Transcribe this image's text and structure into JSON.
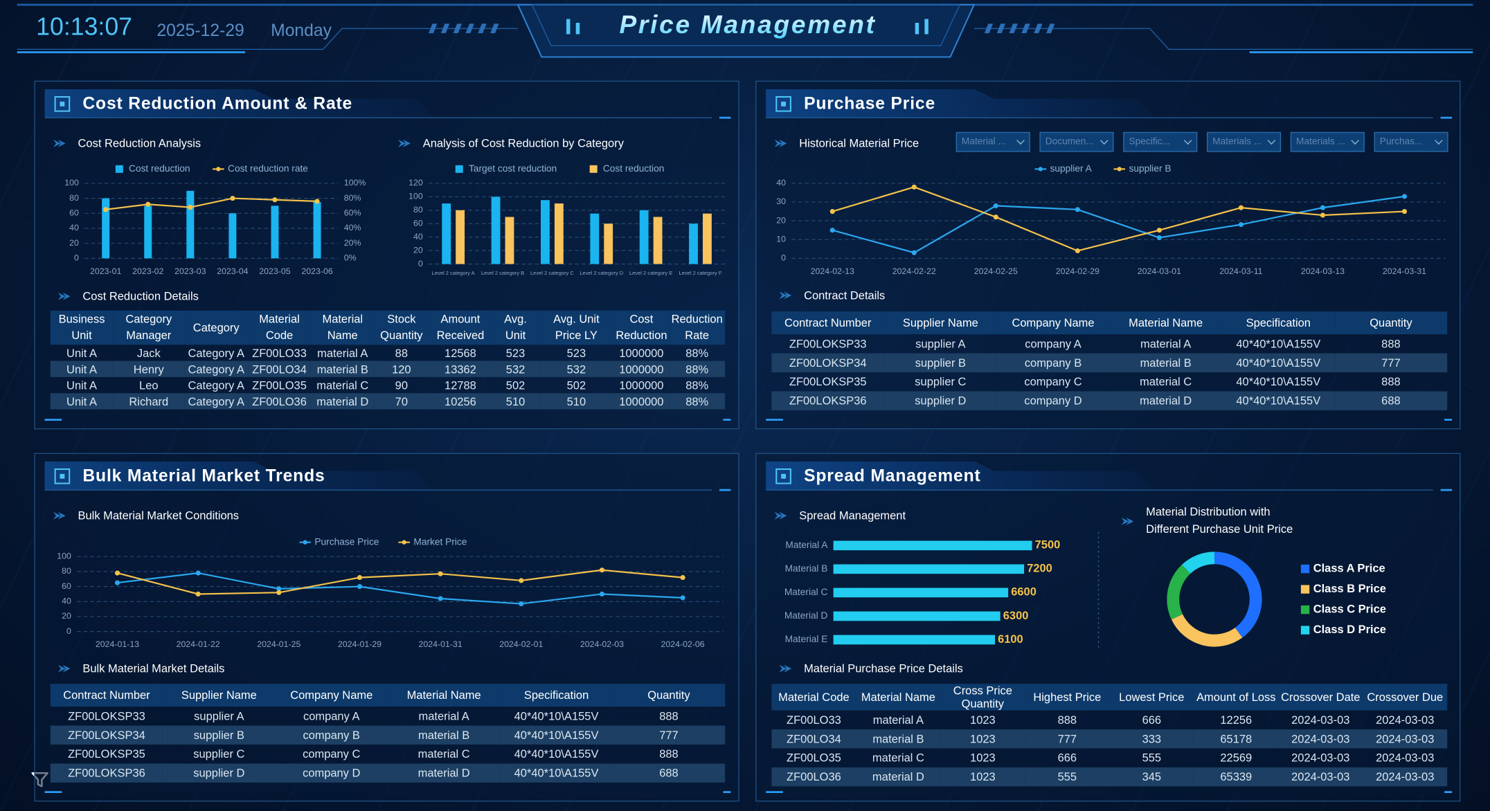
{
  "header": {
    "time": "10:13:07",
    "date": "2025-12-29",
    "weekday": "Monday",
    "title": "Price Management"
  },
  "panels": [
    {
      "title": "Cost Reduction Amount & Rate",
      "charts": [
        {
          "type": "bar",
          "title": "Cost Reduction Analysis",
          "categories": [
            "2023-01",
            "2023-02",
            "2023-03",
            "2023-04",
            "2023-05",
            "2023-06"
          ],
          "ylim": [
            0,
            100
          ],
          "yticks": [
            0,
            20,
            40,
            60,
            80,
            100
          ],
          "y2lim": [
            0,
            100
          ],
          "y2ticks": [
            {
              "value": 0,
              "label": "0%"
            },
            {
              "value": 20,
              "label": "20%"
            },
            {
              "value": 40,
              "label": "40%"
            },
            {
              "value": 60,
              "label": "60%"
            },
            {
              "value": 80,
              "label": "80%"
            },
            {
              "value": 100,
              "label": "100%"
            }
          ],
          "grid": true,
          "series": [
            {
              "name": "Cost reduction",
              "type": "bar",
              "color": "#1ab4f0",
              "values": [
                80,
                70,
                90,
                60,
                70,
                75
              ]
            },
            {
              "name": "Cost reduction rate",
              "type": "line",
              "axis": "y2",
              "color": "#f5c24a",
              "values": [
                65,
                72,
                68,
                80,
                78,
                76
              ]
            }
          ]
        },
        {
          "type": "bar",
          "title": "Analysis of Cost Reduction by Category",
          "categories": [
            "Level 2 category A",
            "Level 2 category B",
            "Level 2 category C",
            "Level 2 category D",
            "Level 2 category E",
            "Level 2 category F"
          ],
          "ylim": [
            0,
            120
          ],
          "yticks": [
            0,
            20,
            40,
            60,
            80,
            100,
            120
          ],
          "grid": true,
          "series": [
            {
              "name": "Target cost reduction",
              "color": "#1ab4f0",
              "values": [
                90,
                100,
                95,
                75,
                80,
                60
              ]
            },
            {
              "name": "Cost reduction",
              "color": "#f9c35d",
              "values": [
                80,
                70,
                90,
                60,
                70,
                75
              ]
            }
          ]
        }
      ],
      "table": {
        "title": "Cost Reduction Details",
        "header": [
          "Business Unit",
          "Category Manager",
          "Category",
          "Material Code",
          "Material Name",
          "Stock Quantity",
          "Amount Received",
          "Avg. Unit",
          "Avg. Unit Price LY",
          "Cost Reduction",
          "Reduction Rate"
        ],
        "rows": [
          [
            "Unit A",
            "Jack",
            "Category A",
            "ZF00LO33",
            "material A",
            "88",
            "12568",
            "523",
            "523",
            "1000000",
            "88%"
          ],
          [
            "Unit A",
            "Henry",
            "Category A",
            "ZF00LO34",
            "material B",
            "120",
            "13362",
            "532",
            "532",
            "1000000",
            "88%"
          ],
          [
            "Unit A",
            "Leo",
            "Category A",
            "ZF00LO35",
            "material C",
            "90",
            "12788",
            "502",
            "502",
            "1000000",
            "88%"
          ],
          [
            "Unit A",
            "Richard",
            "Category A",
            "ZF00LO36",
            "material D",
            "70",
            "10256",
            "510",
            "510",
            "1000000",
            "88%"
          ]
        ]
      }
    },
    {
      "title": "Purchase Price",
      "filters": [
        "Material ...",
        "Documen...",
        "Specific...",
        "Materials ...",
        "Materials ...",
        "Purchas..."
      ],
      "charts": [
        {
          "type": "line",
          "title": "Historical Material Price",
          "categories": [
            "2024-02-13",
            "2024-02-22",
            "2024-02-25",
            "2024-02-29",
            "2024-03-01",
            "2024-03-11",
            "2024-03-13",
            "2024-03-31"
          ],
          "ylim": [
            0,
            40
          ],
          "yticks": [
            0,
            10,
            20,
            30,
            40
          ],
          "grid": true,
          "series": [
            {
              "name": "supplier A",
              "color": "#2ba8f0",
              "values": [
                15,
                3,
                28,
                26,
                11,
                18,
                27,
                33
              ]
            },
            {
              "name": "supplier B",
              "color": "#f5c24a",
              "values": [
                25,
                38,
                22,
                4,
                15,
                27,
                23,
                25
              ]
            }
          ]
        }
      ],
      "table": {
        "title": "Contract Details",
        "header": [
          "Contract Number",
          "Supplier Name",
          "Company Name",
          "Material Name",
          "Specification",
          "Quantity"
        ],
        "rows": [
          [
            "ZF00LOKSP33",
            "supplier A",
            "company A",
            "material A",
            "40*40*10\\A155V",
            "888"
          ],
          [
            "ZF00LOKSP34",
            "supplier B",
            "company B",
            "material B",
            "40*40*10\\A155V",
            "777"
          ],
          [
            "ZF00LOKSP35",
            "supplier C",
            "company C",
            "material C",
            "40*40*10\\A155V",
            "888"
          ],
          [
            "ZF00LOKSP36",
            "supplier D",
            "company D",
            "material D",
            "40*40*10\\A155V",
            "688"
          ]
        ]
      }
    },
    {
      "title": "Bulk Material Market Trends",
      "charts": [
        {
          "type": "line",
          "title": "Bulk Material Market Conditions",
          "categories": [
            "2024-01-13",
            "2024-01-22",
            "2024-01-25",
            "2024-01-29",
            "2024-01-31",
            "2024-02-01",
            "2024-02-03",
            "2024-02-06"
          ],
          "ylim": [
            0,
            100
          ],
          "yticks": [
            0,
            20,
            40,
            60,
            80,
            100
          ],
          "grid": true,
          "series": [
            {
              "name": "Purchase Price",
              "color": "#2ba8f0",
              "values": [
                65,
                78,
                57,
                60,
                44,
                37,
                50,
                45
              ]
            },
            {
              "name": "Market Price",
              "color": "#f5c24a",
              "values": [
                78,
                50,
                52,
                72,
                77,
                68,
                82,
                72
              ]
            }
          ]
        }
      ],
      "table": {
        "title": "Bulk Material Market Details",
        "header": [
          "Contract Number",
          "Supplier Name",
          "Company Name",
          "Material Name",
          "Specification",
          "Quantity"
        ],
        "rows": [
          [
            "ZF00LOKSP33",
            "supplier A",
            "company A",
            "material A",
            "40*40*10\\A155V",
            "888"
          ],
          [
            "ZF00LOKSP34",
            "supplier B",
            "company B",
            "material B",
            "40*40*10\\A155V",
            "777"
          ],
          [
            "ZF00LOKSP35",
            "supplier C",
            "company C",
            "material C",
            "40*40*10\\A155V",
            "888"
          ],
          [
            "ZF00LOKSP36",
            "supplier D",
            "company D",
            "material D",
            "40*40*10\\A155V",
            "688"
          ]
        ]
      }
    },
    {
      "title": "Spread Management",
      "charts": [
        {
          "type": "hbar",
          "title": "Spread Management",
          "categories": [
            "Material A",
            "Material B",
            "Material C",
            "Material D",
            "Material E"
          ],
          "values": [
            7500,
            7200,
            6600,
            6300,
            6100
          ],
          "xlim": [
            0,
            8000
          ],
          "color": "#22cdf0",
          "label_color": "#f5c24a"
        },
        {
          "type": "donut",
          "title": "Material Distribution with Different Purchase Unit Price",
          "categories": [
            "Class A Price",
            "Class B Price",
            "Class C Price",
            "Class D Price"
          ],
          "values": [
            40,
            28,
            20,
            12
          ],
          "colors": [
            "#1e6fff",
            "#f9c35d",
            "#27b24a",
            "#22d3ee"
          ]
        }
      ],
      "table": {
        "title": "Material Purchase Price Details",
        "header": [
          "Material Code",
          "Material Name",
          "Cross Price Quantity",
          "Highest Price",
          "Lowest Price",
          "Amount of Loss",
          "Crossover Date",
          "Crossover Due"
        ],
        "rows": [
          [
            "ZF00LO33",
            "material A",
            "1023",
            "888",
            "666",
            "12256",
            "2024-03-03",
            "2024-03-03"
          ],
          [
            "ZF00LO34",
            "material B",
            "1023",
            "777",
            "333",
            "65178",
            "2024-03-03",
            "2024-03-03"
          ],
          [
            "ZF00LO35",
            "material C",
            "1023",
            "666",
            "555",
            "22569",
            "2024-03-03",
            "2024-03-03"
          ],
          [
            "ZF00LO36",
            "material D",
            "1023",
            "555",
            "345",
            "65339",
            "2024-03-03",
            "2024-03-03"
          ]
        ]
      }
    }
  ]
}
